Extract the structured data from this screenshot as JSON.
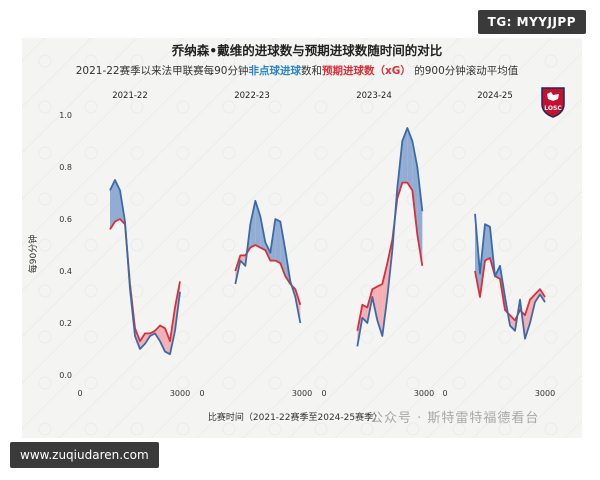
{
  "overlays": {
    "tg_badge": "TG: MYYJJPP",
    "site_watermark": "www.zuqiudaren.com",
    "wechat_watermark": "公众号 · 斯特雷特福德看台"
  },
  "colors": {
    "xg_line": "#d8303a",
    "npg_line": "#3b6aa8",
    "over_fill": "#7fa0cf",
    "under_fill": "#f2a5ab",
    "background": "#f4f4f2"
  },
  "logo": {
    "text": "LOSC",
    "icon": "lille-losc-crest-icon"
  },
  "chart_data": {
    "type": "line",
    "title": "乔纳森•戴维的进球数与预期进球数随时间的对比",
    "subtitle": {
      "prefix": "2021-22赛季以来法甲联赛每90分钟",
      "npg": "非点球进球",
      "mid": "数和",
      "xg": "预期进球数（xG）",
      "suffix": " 的900分钟滚动平均值"
    },
    "ylabel": "每90分钟",
    "xlabel": "比赛时间（2021-22赛季至2024-25赛季）",
    "ylim": [
      0,
      1.0
    ],
    "yticks": [
      "0.0",
      "0.2",
      "0.4",
      "0.6",
      "0.8",
      "1.0"
    ],
    "grid": false,
    "panels": [
      {
        "season": "2021-22",
        "xlim": [
          0,
          3000
        ],
        "xticks": [
          "0",
          "3000"
        ],
        "x": [
          900,
          1050,
          1200,
          1350,
          1500,
          1650,
          1800,
          1950,
          2100,
          2250,
          2400,
          2550,
          2700,
          2850,
          3000
        ],
        "npg": [
          0.71,
          0.75,
          0.71,
          0.59,
          0.33,
          0.15,
          0.1,
          0.12,
          0.15,
          0.16,
          0.13,
          0.09,
          0.08,
          0.17,
          0.32
        ],
        "xg": [
          0.56,
          0.59,
          0.6,
          0.58,
          0.35,
          0.18,
          0.13,
          0.16,
          0.16,
          0.17,
          0.19,
          0.18,
          0.13,
          0.26,
          0.36
        ]
      },
      {
        "season": "2022-23",
        "xlim": [
          0,
          3000
        ],
        "xticks": [
          "0",
          "3000"
        ],
        "x": [
          1000,
          1150,
          1300,
          1450,
          1600,
          1750,
          1900,
          2050,
          2200,
          2350,
          2500,
          2650,
          2800,
          2950
        ],
        "npg": [
          0.35,
          0.44,
          0.42,
          0.58,
          0.67,
          0.61,
          0.51,
          0.47,
          0.6,
          0.59,
          0.48,
          0.36,
          0.3,
          0.2
        ],
        "xg": [
          0.4,
          0.46,
          0.46,
          0.49,
          0.5,
          0.49,
          0.48,
          0.44,
          0.44,
          0.43,
          0.38,
          0.35,
          0.33,
          0.27
        ]
      },
      {
        "season": "2023-24",
        "xlim": [
          0,
          3000
        ],
        "xticks": [
          "0",
          "3000"
        ],
        "x": [
          1000,
          1150,
          1300,
          1450,
          1600,
          1750,
          1900,
          2050,
          2200,
          2350,
          2500,
          2650,
          2800,
          2950
        ],
        "npg": [
          0.11,
          0.22,
          0.2,
          0.3,
          0.21,
          0.15,
          0.3,
          0.48,
          0.72,
          0.9,
          0.95,
          0.9,
          0.8,
          0.63
        ],
        "xg": [
          0.17,
          0.27,
          0.26,
          0.33,
          0.34,
          0.35,
          0.43,
          0.52,
          0.68,
          0.74,
          0.74,
          0.71,
          0.54,
          0.42
        ]
      },
      {
        "season": "2024-25",
        "xlim": [
          0,
          3000
        ],
        "xticks": [
          "0",
          "3000"
        ],
        "x": [
          900,
          1050,
          1200,
          1350,
          1500,
          1650,
          1800,
          1950,
          2100,
          2250,
          2400,
          2550,
          2700,
          2850,
          3000
        ],
        "npg": [
          0.62,
          0.39,
          0.58,
          0.57,
          0.38,
          0.42,
          0.3,
          0.19,
          0.17,
          0.29,
          0.14,
          0.2,
          0.28,
          0.31,
          0.28
        ],
        "xg": [
          0.4,
          0.3,
          0.44,
          0.45,
          0.38,
          0.37,
          0.25,
          0.23,
          0.21,
          0.25,
          0.23,
          0.29,
          0.31,
          0.33,
          0.3
        ]
      }
    ]
  }
}
